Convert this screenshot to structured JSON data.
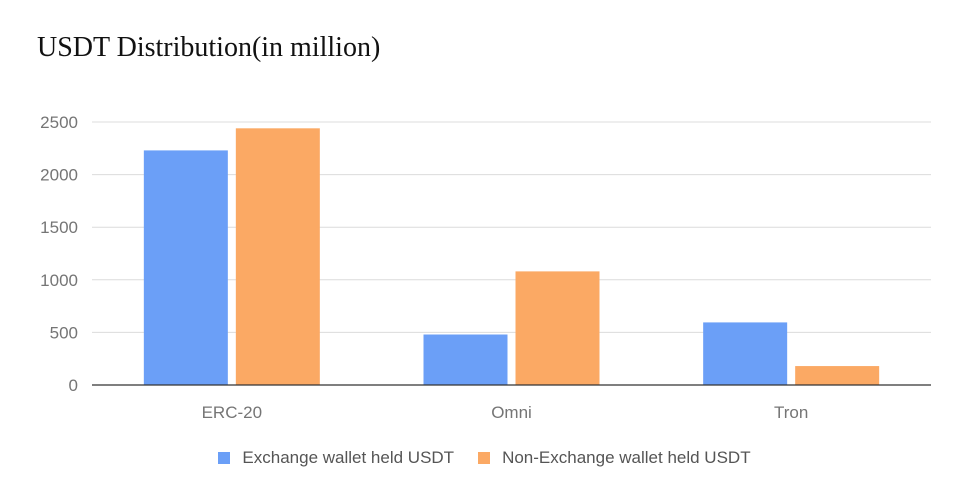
{
  "chart_data": {
    "type": "bar",
    "title": "USDT Distribution(in million)",
    "xlabel": "",
    "ylabel": "",
    "categories": [
      "ERC-20",
      "Omni",
      "Tron"
    ],
    "series": [
      {
        "name": "Exchange wallet held USDT",
        "values": [
          2230,
          480,
          595
        ],
        "color": "#6b9ff7"
      },
      {
        "name": "Non-Exchange wallet held USDT",
        "values": [
          2440,
          1080,
          180
        ],
        "color": "#fba964"
      }
    ],
    "ylim": [
      0,
      2500
    ],
    "yticks": [
      "0",
      "500",
      "1000",
      "1500",
      "2000",
      "2500"
    ],
    "grid": true,
    "legend_position": "bottom-center"
  }
}
